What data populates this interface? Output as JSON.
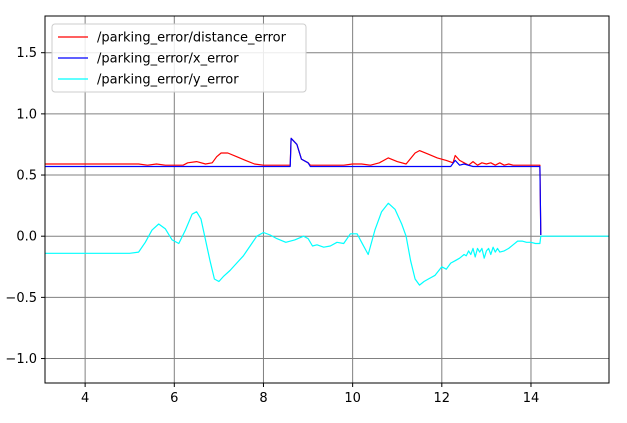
{
  "chart_data": {
    "type": "line",
    "xlim": [
      3.1,
      15.75
    ],
    "ylim": [
      -1.2,
      1.8
    ],
    "grid": true,
    "legend_position": "top-left",
    "x_ticks": [
      4,
      6,
      8,
      10,
      12,
      14
    ],
    "y_ticks": [
      -1.0,
      -0.5,
      0.0,
      0.5,
      1.0,
      1.5
    ],
    "x_tick_labels": [
      "4",
      "6",
      "8",
      "10",
      "12",
      "14"
    ],
    "y_tick_labels": [
      "−1.0",
      "−0.5",
      "0.0",
      "0.5",
      "1.0",
      "1.5"
    ],
    "series": [
      {
        "name": "/parking_error/distance_error",
        "color": "#ff0000",
        "x": [
          3.1,
          5.2,
          5.4,
          5.6,
          5.8,
          6.0,
          6.2,
          6.3,
          6.5,
          6.7,
          6.85,
          6.95,
          7.05,
          7.2,
          7.4,
          7.6,
          7.8,
          8.0,
          8.2,
          8.4,
          8.6,
          8.62,
          8.75,
          8.85,
          9.0,
          9.05,
          9.2,
          9.5,
          9.8,
          10.0,
          10.2,
          10.4,
          10.6,
          10.8,
          11.0,
          11.2,
          11.4,
          11.5,
          11.7,
          11.9,
          12.1,
          12.25,
          12.3,
          12.4,
          12.5,
          12.6,
          12.7,
          12.8,
          12.9,
          13.0,
          13.1,
          13.2,
          13.3,
          13.4,
          13.5,
          13.6,
          13.8,
          14.0,
          14.2,
          14.22
        ],
        "y": [
          0.59,
          0.59,
          0.58,
          0.59,
          0.58,
          0.58,
          0.58,
          0.6,
          0.61,
          0.59,
          0.6,
          0.65,
          0.68,
          0.68,
          0.65,
          0.62,
          0.59,
          0.58,
          0.58,
          0.58,
          0.58,
          0.8,
          0.75,
          0.63,
          0.6,
          0.58,
          0.58,
          0.58,
          0.58,
          0.59,
          0.59,
          0.58,
          0.6,
          0.64,
          0.61,
          0.59,
          0.68,
          0.7,
          0.67,
          0.64,
          0.62,
          0.6,
          0.66,
          0.62,
          0.6,
          0.58,
          0.61,
          0.58,
          0.6,
          0.59,
          0.6,
          0.58,
          0.6,
          0.58,
          0.59,
          0.58,
          0.58,
          0.58,
          0.58,
          0.01
        ]
      },
      {
        "name": "/parking_error/x_error",
        "color": "#0000ff",
        "x": [
          3.1,
          5.5,
          6.0,
          7.0,
          8.0,
          8.6,
          8.62,
          8.75,
          8.85,
          9.0,
          9.05,
          10.0,
          11.0,
          12.0,
          12.2,
          12.3,
          12.4,
          12.5,
          12.7,
          13.0,
          13.5,
          14.0,
          14.2,
          14.22
        ],
        "y": [
          0.57,
          0.57,
          0.57,
          0.57,
          0.57,
          0.57,
          0.8,
          0.75,
          0.63,
          0.6,
          0.57,
          0.57,
          0.57,
          0.57,
          0.57,
          0.62,
          0.58,
          0.59,
          0.57,
          0.57,
          0.57,
          0.57,
          0.57,
          0.01
        ]
      },
      {
        "name": "/parking_error/y_error",
        "color": "#00ffff",
        "x": [
          3.1,
          4.0,
          5.0,
          5.2,
          5.35,
          5.5,
          5.65,
          5.8,
          5.95,
          6.1,
          6.25,
          6.4,
          6.5,
          6.6,
          6.7,
          6.8,
          6.9,
          7.0,
          7.1,
          7.25,
          7.4,
          7.55,
          7.7,
          7.85,
          8.0,
          8.15,
          8.3,
          8.5,
          8.7,
          8.9,
          9.0,
          9.1,
          9.2,
          9.35,
          9.5,
          9.65,
          9.8,
          9.95,
          10.1,
          10.2,
          10.35,
          10.5,
          10.65,
          10.8,
          10.95,
          11.1,
          11.2,
          11.3,
          11.4,
          11.5,
          11.6,
          11.7,
          11.85,
          12.0,
          12.1,
          12.2,
          12.3,
          12.4,
          12.5,
          12.55,
          12.6,
          12.65,
          12.7,
          12.75,
          12.8,
          12.85,
          12.9,
          12.95,
          13.0,
          13.05,
          13.1,
          13.15,
          13.2,
          13.25,
          13.3,
          13.4,
          13.5,
          13.6,
          13.7,
          13.8,
          13.9,
          14.0,
          14.1,
          14.2,
          14.22,
          15.0,
          15.75
        ],
        "y": [
          -0.14,
          -0.14,
          -0.14,
          -0.13,
          -0.05,
          0.05,
          0.1,
          0.06,
          -0.03,
          -0.06,
          0.05,
          0.18,
          0.2,
          0.14,
          -0.03,
          -0.2,
          -0.35,
          -0.37,
          -0.33,
          -0.28,
          -0.22,
          -0.16,
          -0.08,
          0.0,
          0.03,
          0.01,
          -0.02,
          -0.05,
          -0.03,
          0.0,
          -0.02,
          -0.08,
          -0.07,
          -0.09,
          -0.08,
          -0.05,
          -0.06,
          0.02,
          0.02,
          -0.05,
          -0.15,
          0.05,
          0.2,
          0.27,
          0.22,
          0.1,
          0.0,
          -0.2,
          -0.35,
          -0.4,
          -0.37,
          -0.35,
          -0.32,
          -0.25,
          -0.27,
          -0.22,
          -0.2,
          -0.18,
          -0.15,
          -0.16,
          -0.12,
          -0.15,
          -0.1,
          -0.17,
          -0.1,
          -0.13,
          -0.1,
          -0.18,
          -0.12,
          -0.1,
          -0.15,
          -0.09,
          -0.13,
          -0.1,
          -0.13,
          -0.12,
          -0.1,
          -0.07,
          -0.04,
          -0.04,
          -0.05,
          -0.05,
          -0.06,
          -0.06,
          0.0,
          0.0,
          0.0
        ]
      }
    ]
  }
}
